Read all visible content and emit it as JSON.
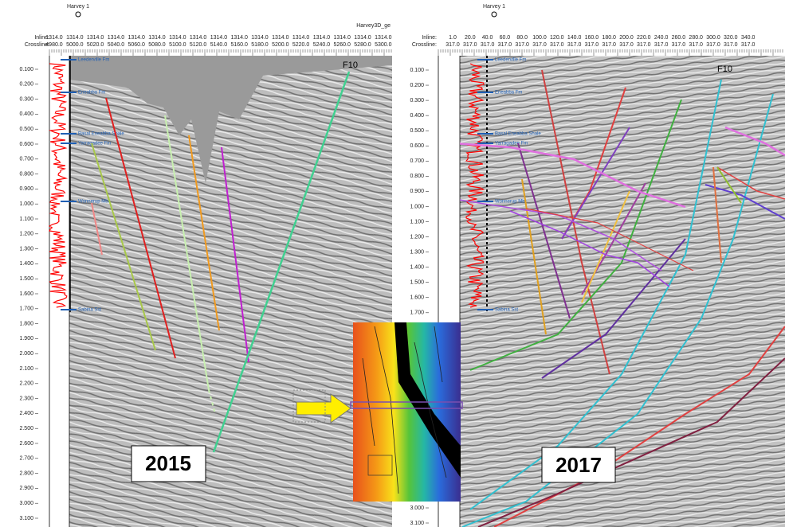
{
  "left_panel": {
    "well": "Harvey 1",
    "survey": "Harvey3D_ge",
    "inline_label": "Inline:",
    "crossline_label": "Crossline:",
    "inline": [
      "1314.0",
      "1314.0",
      "1314.0",
      "1314.0",
      "1314.0",
      "1314.0",
      "1314.0",
      "1314.0",
      "1314.0",
      "1314.0",
      "1314.0",
      "1314.0",
      "1314.0",
      "1314.0",
      "1314.0",
      "1314.0",
      "1314.0"
    ],
    "crossline": [
      "4980.0",
      "5000.0",
      "5020.0",
      "5040.0",
      "5060.0",
      "5080.0",
      "5100.0",
      "5120.0",
      "5140.0",
      "5160.0",
      "5180.0",
      "5200.0",
      "5220.0",
      "5240.0",
      "5260.0",
      "5280.0",
      "5300.0"
    ],
    "depths": [
      "0.100",
      "0.200",
      "0.300",
      "0.400",
      "0.500",
      "0.600",
      "0.700",
      "0.800",
      "0.900",
      "1.000",
      "1.100",
      "1.200",
      "1.300",
      "1.400",
      "1.500",
      "1.600",
      "1.700",
      "1.800",
      "1.900",
      "2.000",
      "2.100",
      "2.200",
      "2.300",
      "2.400",
      "2.500",
      "2.600",
      "2.700",
      "2.800",
      "2.900",
      "3.000",
      "3.100"
    ],
    "formations": [
      "Leederville Fm",
      "Eneabba Fm",
      "Basal Eneabba Shale",
      "Yarragadee Fm",
      "Wonnerup Mbr",
      "Sabina Sst"
    ],
    "fault_label": "F10",
    "year": "2015"
  },
  "right_panel": {
    "well": "Harvey 1",
    "inline_label": "Inline:",
    "crossline_label": "Crossline:",
    "inline": [
      "1.0",
      "20.0",
      "40.0",
      "60.0",
      "80.0",
      "100.0",
      "120.0",
      "140.0",
      "160.0",
      "180.0",
      "200.0",
      "220.0",
      "240.0",
      "260.0",
      "280.0",
      "300.0",
      "320.0",
      "340.0"
    ],
    "crossline": [
      "317.0",
      "317.0",
      "317.0",
      "317.0",
      "317.0",
      "317.0",
      "317.0",
      "317.0",
      "317.0",
      "317.0",
      "317.0",
      "317.0",
      "317.0",
      "317.0",
      "317.0",
      "317.0",
      "317.0",
      "317.0"
    ],
    "depths": [
      "0.100",
      "0.200",
      "0.300",
      "0.400",
      "0.500",
      "0.600",
      "0.700",
      "0.800",
      "0.900",
      "1.000",
      "1.100",
      "1.200",
      "1.300",
      "1.400",
      "1.500",
      "1.600",
      "1.700",
      "3.000",
      "3.100"
    ],
    "formations": [
      "Leederville Fm",
      "Eneabba Fm",
      "Basal Eneabba Shale",
      "Yarragadee Fm",
      "Wonnerup Mbr",
      "Sabina Sst"
    ],
    "fault_label": "F10",
    "year": "2017"
  }
}
